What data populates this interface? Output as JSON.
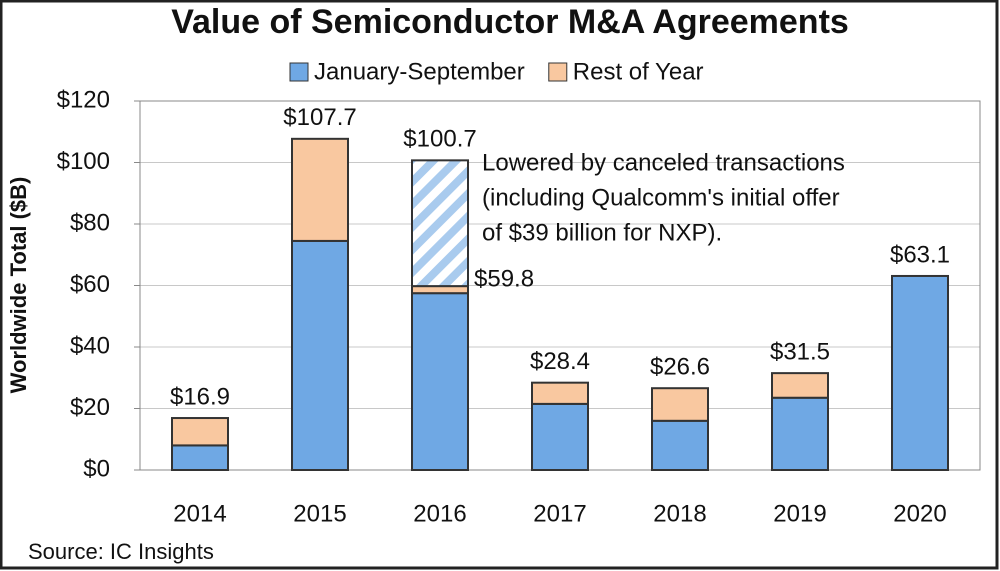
{
  "chart_data": {
    "type": "stacked_bar",
    "title": "Value of Semiconductor M&A Agreements",
    "y_label": "Worldwide Total ($B)",
    "source": "Source: IC Insights",
    "categories": [
      "2014",
      "2015",
      "2016",
      "2017",
      "2018",
      "2019",
      "2020"
    ],
    "series": [
      {
        "name": "January-September",
        "color": "#6fa8e4",
        "values": [
          8,
          74.5,
          57.5,
          21.5,
          16,
          23.5,
          63.1
        ]
      },
      {
        "name": "Rest of Year",
        "color": "#f9c8a0",
        "values": [
          8.9,
          33.2,
          2.3,
          6.9,
          10.6,
          8,
          null
        ]
      }
    ],
    "totals": [
      16.9,
      107.7,
      59.8,
      28.4,
      26.6,
      31.5,
      63.1
    ],
    "total_labels": [
      "$16.9",
      "$107.7",
      "$59.8",
      "$28.4",
      "$26.6",
      "$31.5",
      "$63.1"
    ],
    "canceled": {
      "category": "2016",
      "value": 40.9,
      "color": "#a9cbee",
      "total": 100.7,
      "total_label": "$100.7",
      "annotation": [
        "Lowered by canceled transactions",
        "(including Qualcomm's initial offer",
        "of $39 billion for NXP)."
      ]
    },
    "ylim": [
      0,
      120
    ],
    "yticks": [
      {
        "value": 0,
        "label": "$0"
      },
      {
        "value": 20,
        "label": "$20"
      },
      {
        "value": 40,
        "label": "$40"
      },
      {
        "value": 60,
        "label": "$60"
      },
      {
        "value": 80,
        "label": "$80"
      },
      {
        "value": 100,
        "label": "$100"
      },
      {
        "value": 120,
        "label": "$120"
      }
    ],
    "grid": true,
    "legend": "top"
  }
}
